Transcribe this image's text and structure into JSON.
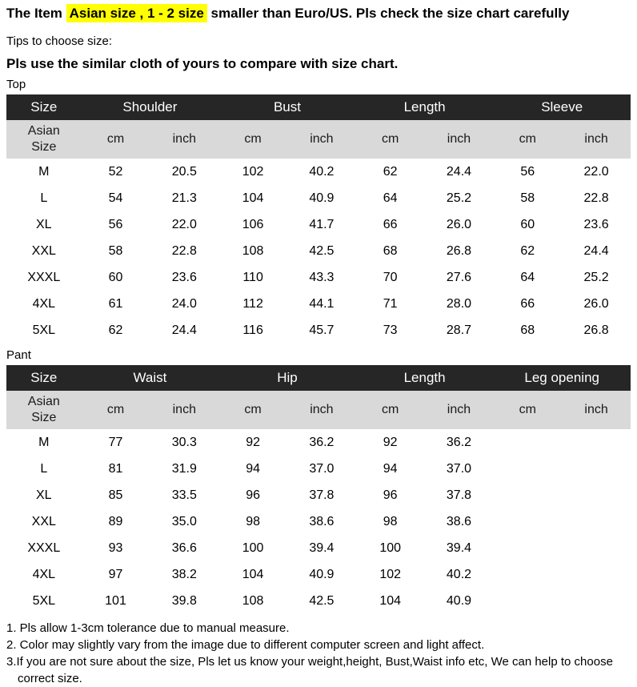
{
  "header": {
    "prefix": "The Item ",
    "highlight": "Asian size , 1 - 2 size",
    "suffix": " smaller than Euro/US. Pls check the size chart carefully"
  },
  "tips": {
    "label": "Tips to choose size:",
    "advice": "Pls use the similar cloth of yours to compare with size chart."
  },
  "colors": {
    "table_header_bg": "#262626",
    "table_header_text": "#ffffff",
    "table_subheader_bg": "#d9d9d9",
    "highlight": "#ffff00"
  },
  "tables": [
    {
      "section_label": "Top",
      "size_header": "Size",
      "group_headers": [
        "Shoulder",
        "Bust",
        "Length",
        "Sleeve"
      ],
      "subheader_size": "Asian Size",
      "unit_labels": [
        "cm",
        "inch",
        "cm",
        "inch",
        "cm",
        "inch",
        "cm",
        "inch"
      ],
      "rows": [
        {
          "size": "M",
          "values": [
            "52",
            "20.5",
            "102",
            "40.2",
            "62",
            "24.4",
            "56",
            "22.0"
          ]
        },
        {
          "size": "L",
          "values": [
            "54",
            "21.3",
            "104",
            "40.9",
            "64",
            "25.2",
            "58",
            "22.8"
          ]
        },
        {
          "size": "XL",
          "values": [
            "56",
            "22.0",
            "106",
            "41.7",
            "66",
            "26.0",
            "60",
            "23.6"
          ]
        },
        {
          "size": "XXL",
          "values": [
            "58",
            "22.8",
            "108",
            "42.5",
            "68",
            "26.8",
            "62",
            "24.4"
          ]
        },
        {
          "size": "XXXL",
          "values": [
            "60",
            "23.6",
            "110",
            "43.3",
            "70",
            "27.6",
            "64",
            "25.2"
          ]
        },
        {
          "size": "4XL",
          "values": [
            "61",
            "24.0",
            "112",
            "44.1",
            "71",
            "28.0",
            "66",
            "26.0"
          ]
        },
        {
          "size": "5XL",
          "values": [
            "62",
            "24.4",
            "116",
            "45.7",
            "73",
            "28.7",
            "68",
            "26.8"
          ]
        }
      ]
    },
    {
      "section_label": "Pant",
      "size_header": "Size",
      "group_headers": [
        "Waist",
        "Hip",
        "Length",
        "Leg opening"
      ],
      "subheader_size": "Asian Size",
      "unit_labels": [
        "cm",
        "inch",
        "cm",
        "inch",
        "cm",
        "inch",
        "cm",
        "inch"
      ],
      "rows": [
        {
          "size": "M",
          "values": [
            "77",
            "30.3",
            "92",
            "36.2",
            "92",
            "36.2",
            "",
            ""
          ]
        },
        {
          "size": "L",
          "values": [
            "81",
            "31.9",
            "94",
            "37.0",
            "94",
            "37.0",
            "",
            ""
          ]
        },
        {
          "size": "XL",
          "values": [
            "85",
            "33.5",
            "96",
            "37.8",
            "96",
            "37.8",
            "",
            ""
          ]
        },
        {
          "size": "XXL",
          "values": [
            "89",
            "35.0",
            "98",
            "38.6",
            "98",
            "38.6",
            "",
            ""
          ]
        },
        {
          "size": "XXXL",
          "values": [
            "93",
            "36.6",
            "100",
            "39.4",
            "100",
            "39.4",
            "",
            ""
          ]
        },
        {
          "size": "4XL",
          "values": [
            "97",
            "38.2",
            "104",
            "40.9",
            "102",
            "40.2",
            "",
            ""
          ]
        },
        {
          "size": "5XL",
          "values": [
            "101",
            "39.8",
            "108",
            "42.5",
            "104",
            "40.9",
            "",
            ""
          ]
        }
      ]
    }
  ],
  "notes": [
    "1. Pls allow 1-3cm tolerance due to manual measure.",
    "2. Color may slightly vary from the image due to different computer screen and light affect.",
    "3.If you are not sure about the size, Pls let us know your weight,height, Bust,Waist info etc, We can help to choose correct size."
  ]
}
